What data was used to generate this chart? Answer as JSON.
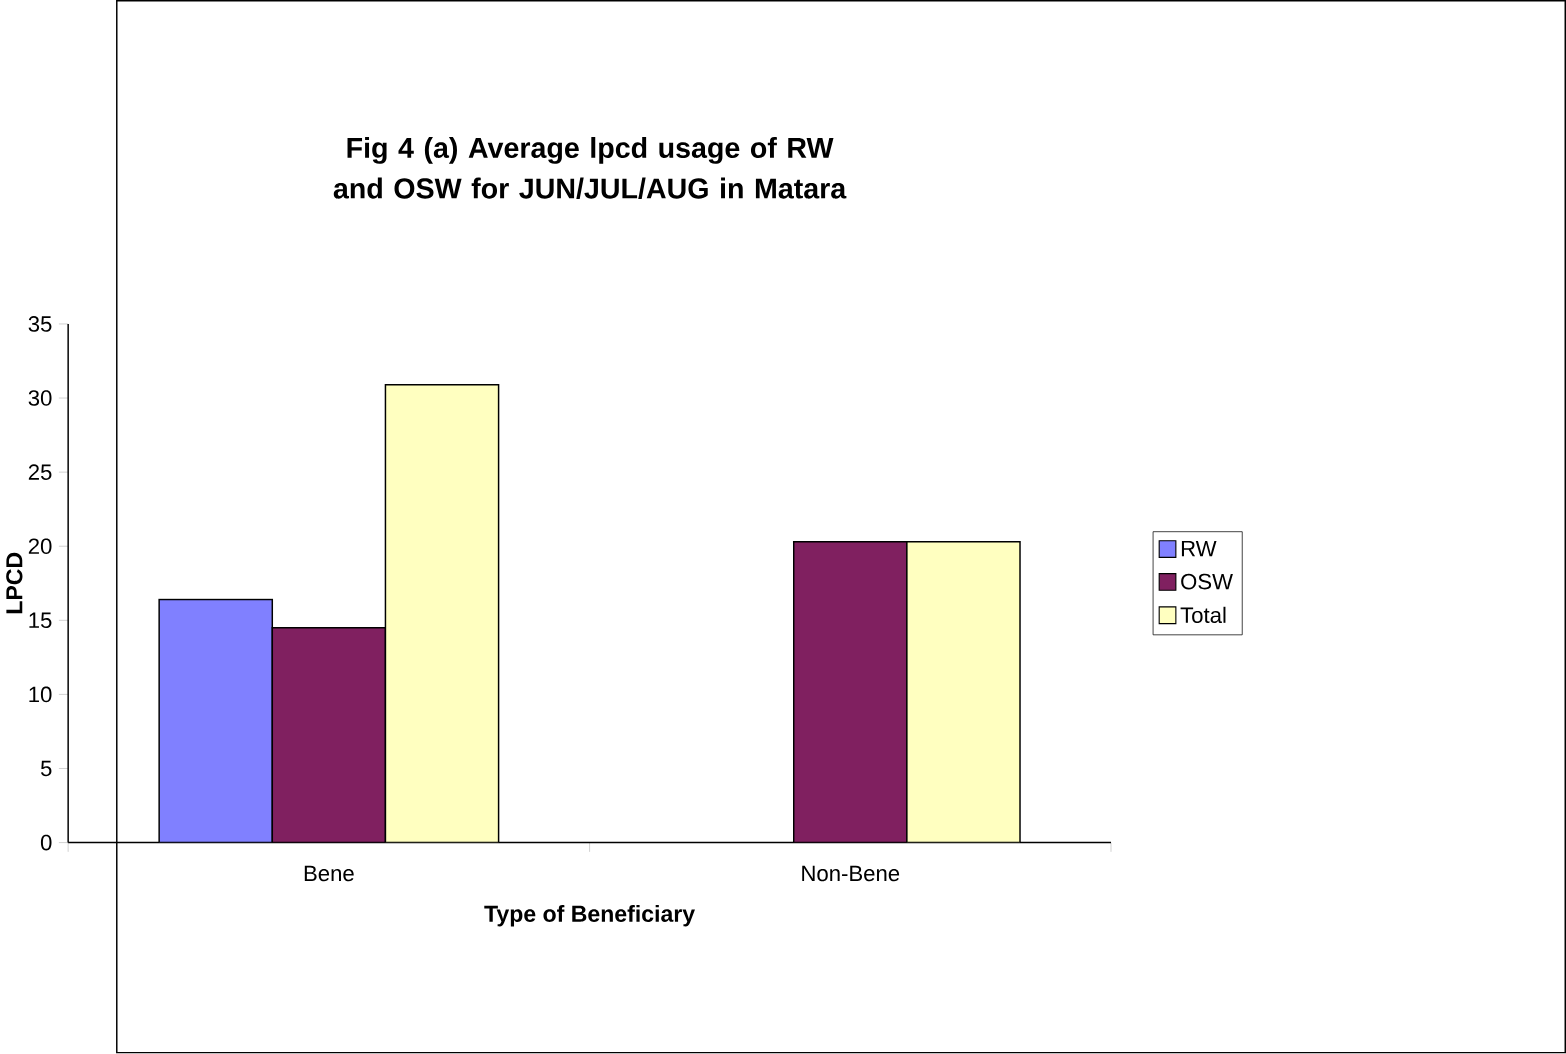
{
  "chart_data": {
    "type": "bar",
    "title": "Fig 4 (a) Average lpcd usage of RW and OSW for JUN/JUL/AUG in Matara",
    "xlabel": "Type of Beneficiary",
    "ylabel": "LPCD",
    "categories": [
      "Bene",
      "Non-Bene"
    ],
    "series": [
      {
        "name": "RW",
        "color": "#8080ff",
        "values": [
          16.4,
          null
        ]
      },
      {
        "name": "OSW",
        "color": "#802060",
        "values": [
          14.5,
          20.3
        ]
      },
      {
        "name": "Total",
        "color": "#ffffc0",
        "values": [
          30.9,
          20.3
        ]
      }
    ],
    "ylim": [
      0,
      35
    ],
    "yticks": [
      0,
      5,
      10,
      15,
      20,
      25,
      30,
      35
    ],
    "grid": false,
    "legend": "right"
  }
}
